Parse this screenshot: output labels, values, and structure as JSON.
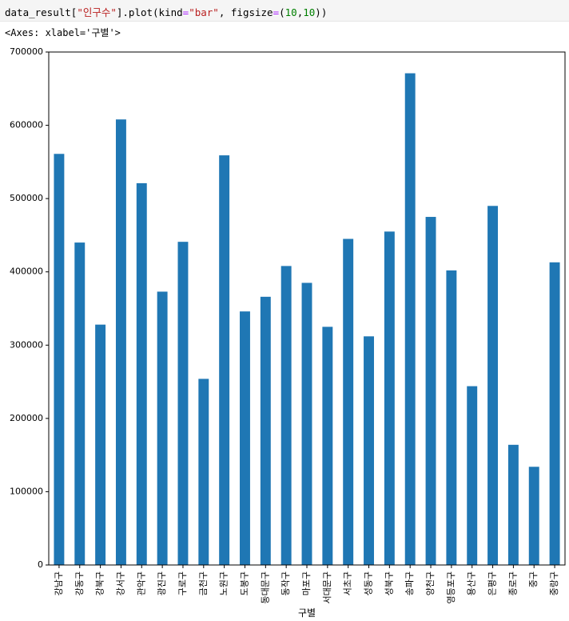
{
  "cell": {
    "input_parts": [
      "data_result[",
      "\"인구수\"",
      "].plot(kind",
      "=",
      "\"bar\"",
      ", figsize",
      "=",
      "(",
      "10",
      ",",
      "10",
      "))"
    ],
    "output_repr": "<Axes: xlabel='구별'>"
  },
  "colors": {
    "bar": "#1f77b4",
    "axis": "#000000"
  },
  "chart_data": {
    "type": "bar",
    "title": "",
    "xlabel": "구별",
    "ylabel": "",
    "ylim": [
      0,
      700000
    ],
    "yticks": [
      0,
      100000,
      200000,
      300000,
      400000,
      500000,
      600000,
      700000
    ],
    "ytick_labels": [
      "0",
      "100000",
      "200000",
      "300000",
      "400000",
      "500000",
      "600000",
      "700000"
    ],
    "grid": false,
    "legend": "none",
    "categories": [
      "강남구",
      "강동구",
      "강북구",
      "강서구",
      "관악구",
      "광진구",
      "구로구",
      "금천구",
      "노원구",
      "도봉구",
      "동대문구",
      "동작구",
      "마포구",
      "서대문구",
      "서초구",
      "성동구",
      "성북구",
      "송파구",
      "양천구",
      "영등포구",
      "용산구",
      "은평구",
      "종로구",
      "중구",
      "중랑구"
    ],
    "values": [
      561000,
      440000,
      328000,
      608000,
      521000,
      373000,
      441000,
      254000,
      559000,
      346000,
      366000,
      408000,
      385000,
      325000,
      445000,
      312000,
      455000,
      671000,
      475000,
      402000,
      244000,
      490000,
      164000,
      134000,
      413000
    ]
  }
}
